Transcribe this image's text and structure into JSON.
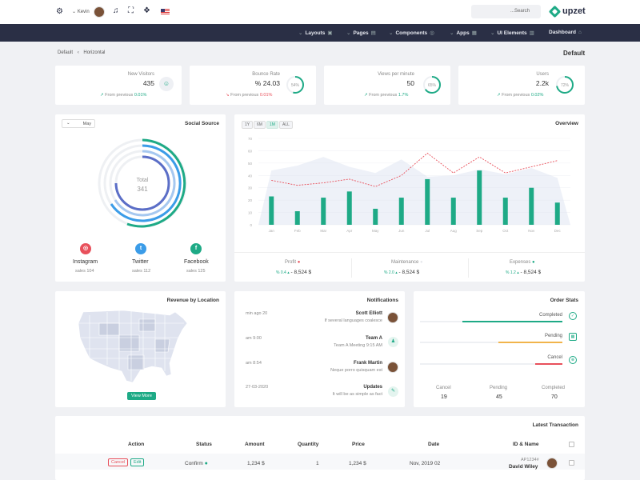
{
  "topbar": {
    "user_name": "Kevin",
    "search_placeholder": "...Search",
    "brand": "upzet"
  },
  "nav": {
    "items": [
      {
        "label": "Layouts",
        "icon": "layout-icon"
      },
      {
        "label": "Pages",
        "icon": "pages-icon"
      },
      {
        "label": "Components",
        "icon": "components-icon"
      },
      {
        "label": "Apps",
        "icon": "apps-icon"
      },
      {
        "label": "UI Elements",
        "icon": "ui-elements-icon"
      },
      {
        "label": "Dashboard",
        "icon": "home-icon"
      }
    ]
  },
  "breadcrumb": {
    "first": "Default",
    "sep": "‹",
    "second": "Horizontal"
  },
  "page_title": "Default",
  "stats": [
    {
      "label": "New Visitors",
      "value": "435",
      "trend_label": "From previous",
      "trend": "0.01%",
      "trend_dir": "up"
    },
    {
      "label": "Bounce Rate",
      "value": "% 24.03",
      "trend_label": "From previous",
      "trend": "0.01%",
      "trend_dir": "down",
      "ring_label": "54%",
      "ring_fraction": 0.54
    },
    {
      "label": "Views per minute",
      "value": "50",
      "trend_label": "From previous",
      "trend": "1.7%",
      "trend_dir": "up",
      "ring_label": "65%",
      "ring_fraction": 0.65
    },
    {
      "label": "Users",
      "value": "2.2k",
      "trend_label": "From previous",
      "trend": "0.02%",
      "trend_dir": "up",
      "ring_label": "72%",
      "ring_fraction": 0.72
    }
  ],
  "social": {
    "title": "Social Source",
    "filter": "May",
    "total_label": "Total",
    "total_value": "341",
    "sources": [
      {
        "name": "Instagram",
        "sales": "sales 104",
        "color": "#e8505b",
        "icon": "instagram-icon"
      },
      {
        "name": "Twitter",
        "sales": "sales 112",
        "color": "#3b9ce8",
        "icon": "twitter-icon"
      },
      {
        "name": "Facebook",
        "sales": "sales 125",
        "color": "#1eaa86",
        "icon": "facebook-icon"
      }
    ]
  },
  "overview": {
    "title": "Overview",
    "ranges": [
      "1Y",
      "6M",
      "1M",
      "ALL"
    ],
    "active_range": "1M",
    "summary": [
      {
        "label": "Profit",
        "dot": "#e8505b",
        "change": "% 0.4",
        "arrow": "▴",
        "value": "8,524 $"
      },
      {
        "label": "Maintenance",
        "dot": "#e5e7eb",
        "change": "% 2.0",
        "arrow": "▴",
        "value": "8,524 $"
      },
      {
        "label": "Expenses",
        "dot": "#1eaa86",
        "change": "% 1.2",
        "arrow": "▴",
        "value": "8,524 $"
      }
    ]
  },
  "chart_data": {
    "type": "bar",
    "categories": [
      "Jan",
      "Feb",
      "Mar",
      "Apr",
      "May",
      "Jun",
      "Jul",
      "Aug",
      "Sep",
      "Oct",
      "Nov",
      "Dec"
    ],
    "ylim": [
      0,
      70
    ],
    "yticks": [
      0,
      10,
      20,
      30,
      40,
      50,
      60,
      70
    ],
    "series": [
      {
        "type": "bar",
        "color": "#1eaa86",
        "values": [
          23,
          11,
          22,
          27,
          13,
          22,
          37,
          22,
          44,
          22,
          30,
          18
        ]
      },
      {
        "type": "line",
        "color": "#e8505b",
        "dashed": true,
        "values": [
          36,
          32,
          34,
          37,
          31,
          40,
          58,
          42,
          55,
          42,
          47,
          52
        ]
      },
      {
        "type": "area",
        "color": "#d9dff0",
        "values": [
          44,
          48,
          55,
          47,
          42,
          53,
          39,
          40,
          45,
          41,
          46,
          38
        ]
      }
    ],
    "grid": true
  },
  "revenue": {
    "title": "Revenue by Location",
    "button": "View More"
  },
  "notifications": {
    "title": "Notifications",
    "items": [
      {
        "time": "min ago 20",
        "name": "Scott Elliott",
        "text": "If several languages coalesce",
        "icon": "avatar"
      },
      {
        "time": "am 9:00",
        "name": "Team A",
        "text": "Team A Meeting 9:15 AM",
        "icon": "team-icon"
      },
      {
        "time": "am 8:54",
        "name": "Frank Martin",
        "text": "Neque porro quisquam est",
        "icon": "avatar"
      },
      {
        "time": "27-03-2020",
        "name": "Updates",
        "text": "It will be as simple as fact",
        "icon": "update-icon"
      }
    ]
  },
  "orders": {
    "title": "Order Stats",
    "bars": [
      {
        "label": "Completed",
        "color": "#1eaa86",
        "fraction": 0.7
      },
      {
        "label": "Pending",
        "color": "#f1b44c",
        "fraction": 0.45
      },
      {
        "label": "Cancel",
        "color": "#e8505b",
        "fraction": 0.19
      }
    ],
    "totals": [
      {
        "label": "Cancel",
        "value": "19"
      },
      {
        "label": "Pending",
        "value": "45"
      },
      {
        "label": "Completed",
        "value": "70"
      }
    ]
  },
  "transactions": {
    "title": "Latest Transaction",
    "headers": [
      "Action",
      "Status",
      "Amount",
      "Quantity",
      "Price",
      "Date",
      "ID & Name"
    ],
    "row": {
      "cancel": "Cancel",
      "edit": "Edit",
      "status": "Confirm",
      "amount": "1,234 $",
      "quantity": "1",
      "price": "1,234 $",
      "date": "Nov, 2019 02",
      "id": "AP1234#",
      "name": "David Wiley"
    }
  }
}
